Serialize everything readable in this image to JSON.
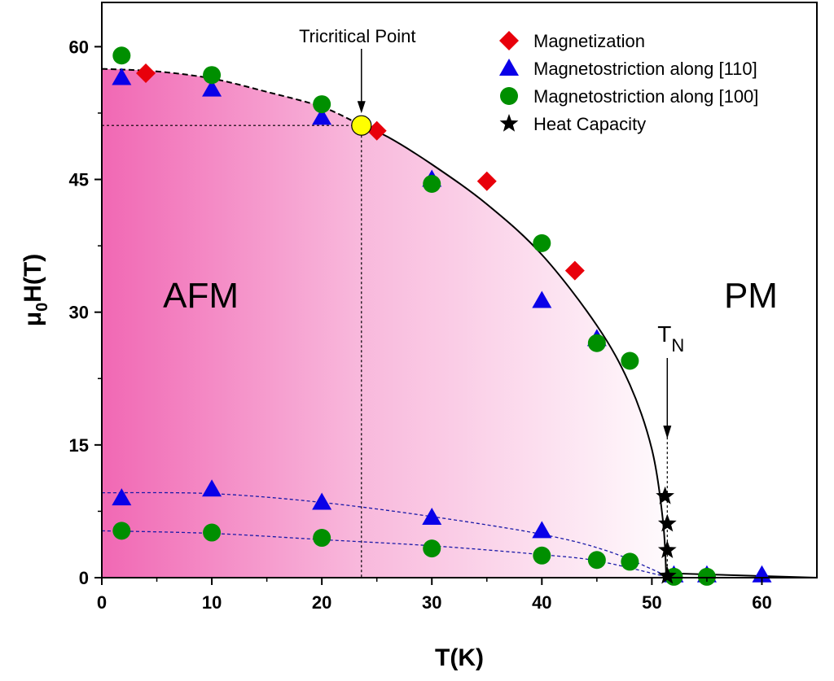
{
  "chart_data": {
    "type": "scatter",
    "xlabel": "T(K)",
    "ylabel": {
      "main": "μ",
      "sub": "0",
      "rest": "H(T)"
    },
    "xlim": [
      0,
      65
    ],
    "ylim": [
      0,
      65
    ],
    "x_ticks": [
      0,
      10,
      20,
      30,
      40,
      50,
      60
    ],
    "y_ticks": [
      0,
      15,
      30,
      45,
      60
    ],
    "legend_position": "top-right",
    "series": [
      {
        "name": "Magnetization",
        "marker": "diamond",
        "color": "#e8000b",
        "points": [
          [
            4,
            57
          ],
          [
            25,
            50.5
          ],
          [
            35,
            44.8
          ],
          [
            43,
            34.7
          ]
        ]
      },
      {
        "name": "Magnetostriction along [110]",
        "marker": "triangle",
        "color": "#0a00e8",
        "points": [
          [
            1.8,
            56.5
          ],
          [
            10,
            55.2
          ],
          [
            20,
            52
          ],
          [
            30,
            45
          ],
          [
            40,
            31.3
          ],
          [
            45,
            27
          ],
          [
            1.8,
            9
          ],
          [
            10,
            10
          ],
          [
            20,
            8.5
          ],
          [
            30,
            6.8
          ],
          [
            40,
            5.3
          ],
          [
            52,
            0.3
          ],
          [
            55,
            0.3
          ],
          [
            60,
            0.3
          ]
        ]
      },
      {
        "name": "Magnetostriction along [100]",
        "marker": "circle",
        "color": "#008f00",
        "points": [
          [
            1.8,
            59
          ],
          [
            10,
            56.8
          ],
          [
            20,
            53.5
          ],
          [
            30,
            44.5
          ],
          [
            40,
            37.8
          ],
          [
            45,
            26.5
          ],
          [
            48,
            24.5
          ],
          [
            1.8,
            5.3
          ],
          [
            10,
            5.1
          ],
          [
            20,
            4.5
          ],
          [
            30,
            3.3
          ],
          [
            40,
            2.5
          ],
          [
            45,
            2
          ],
          [
            48,
            1.8
          ],
          [
            52,
            0.1
          ],
          [
            55,
            0.1
          ]
        ]
      },
      {
        "name": "Heat Capacity",
        "marker": "star",
        "color": "#000000",
        "points": [
          [
            51.2,
            9.2
          ],
          [
            51.4,
            6.1
          ],
          [
            51.4,
            3.1
          ],
          [
            51.4,
            0.2
          ]
        ]
      }
    ],
    "phase_boundary": [
      [
        0,
        57.5
      ],
      [
        5,
        57.2
      ],
      [
        10,
        56.4
      ],
      [
        15,
        54.9
      ],
      [
        20,
        53.2
      ],
      [
        23.6,
        51.1
      ],
      [
        26,
        49.8
      ],
      [
        30,
        46.7
      ],
      [
        35,
        42.2
      ],
      [
        40,
        36.5
      ],
      [
        45,
        28.5
      ],
      [
        48,
        21.8
      ],
      [
        50,
        14.5
      ],
      [
        51,
        6.5
      ],
      [
        51.3,
        0.5
      ],
      [
        65,
        0
      ]
    ],
    "lower_boundary_110": [
      [
        0,
        9.6
      ],
      [
        10,
        9.5
      ],
      [
        20,
        8.5
      ],
      [
        30,
        6.9
      ],
      [
        40,
        4.9
      ],
      [
        46,
        3
      ],
      [
        51,
        0.4
      ]
    ],
    "lower_boundary_100": [
      [
        0,
        5.3
      ],
      [
        10,
        5
      ],
      [
        20,
        4.3
      ],
      [
        30,
        3.6
      ],
      [
        40,
        2.6
      ],
      [
        45,
        1.9
      ],
      [
        51,
        0.2
      ]
    ],
    "tricritical_point": {
      "label": "Tricritical Point",
      "x": 23.6,
      "y": 51.1,
      "color": "#ffff00"
    },
    "neel_label": {
      "main": "T",
      "sub": "N",
      "x": 51.4,
      "y": 17
    },
    "regions": [
      {
        "label": "AFM",
        "x": 9,
        "y": 32
      },
      {
        "label": "PM",
        "x": 59,
        "y": 32
      }
    ],
    "fill_color": "#f060b0"
  }
}
